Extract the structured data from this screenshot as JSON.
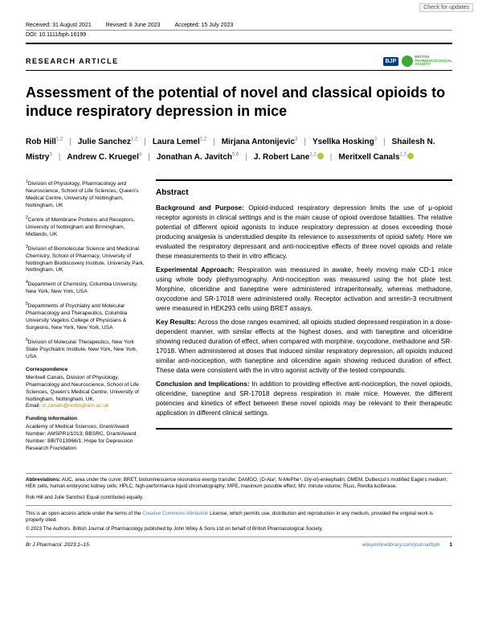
{
  "updates_badge": "Check for updates",
  "header": {
    "received": "Received: 31 August 2021",
    "revised": "Revised: 8 June 2023",
    "accepted": "Accepted: 15 July 2023"
  },
  "doi": "DOI: 10.1111/bph.16199",
  "article_type": "RESEARCH ARTICLE",
  "logos": {
    "bjp": "BJP",
    "bps_line1": "BRITISH",
    "bps_line2": "PHARMACOLOGICAL",
    "bps_line3": "SOCIETY"
  },
  "title": "Assessment of the potential of novel and classical opioids to induce respiratory depression in mice",
  "authors": [
    {
      "name": "Rob Hill",
      "sup": "1,2",
      "orcid": false
    },
    {
      "name": "Julie Sanchez",
      "sup": "1,2",
      "orcid": false
    },
    {
      "name": "Laura Lemel",
      "sup": "1,2",
      "orcid": false
    },
    {
      "name": "Mirjana Antonijevic",
      "sup": "3",
      "orcid": false
    },
    {
      "name": "Ysellka Hosking",
      "sup": "3",
      "orcid": false
    },
    {
      "name": "Shailesh N. Mistry",
      "sup": "3",
      "orcid": false
    },
    {
      "name": "Andrew C. Kruegel",
      "sup": "4",
      "orcid": false
    },
    {
      "name": "Jonathan A. Javitch",
      "sup": "5,6",
      "orcid": false
    },
    {
      "name": "J. Robert Lane",
      "sup": "1,2",
      "orcid": true
    },
    {
      "name": "Meritxell Canals",
      "sup": "1,2",
      "orcid": true
    }
  ],
  "affiliations": [
    {
      "n": "1",
      "text": "Division of Physiology, Pharmacology and Neuroscience, School of Life Sciences, Queen's Medical Centre, University of Nottingham, Nottingham, UK"
    },
    {
      "n": "2",
      "text": "Centre of Membrane Proteins and Receptors, University of Nottingham and Birmingham, Midlands, UK"
    },
    {
      "n": "3",
      "text": "Division of Biomolecular Science and Medicinal Chemistry, School of Pharmacy, University of Nottingham Biodiscovery Institute, University Park, Nottingham, UK"
    },
    {
      "n": "4",
      "text": "Department of Chemistry, Columbia University, New York, New York, USA"
    },
    {
      "n": "5",
      "text": "Departments of Psychiatry and Molecular Pharmacology and Therapeutics, Columbia University Vagelos College of Physicians & Surgeons, New York, New York, USA"
    },
    {
      "n": "6",
      "text": "Division of Molecular Therapeutics, New York State Psychiatric Institute, New York, New York, USA"
    }
  ],
  "correspondence": {
    "heading": "Correspondence",
    "text": "Meritxell Canals, Division of Physiology, Pharmacology and Neuroscience, School of Life Sciences, Queen's Medical Centre, University of Nottingham, Nottingham, UK.",
    "email_label": "Email: ",
    "email": "m.canals@nottingham.ac.uk"
  },
  "funding": {
    "heading": "Funding information",
    "text": "Academy of Medical Sciences, Grant/Award Number: AMSPR1/1013; BBSRC, Grant/Award Number: BB/T013966/1; Hope for Depression Research Foundation"
  },
  "abstract": {
    "heading": "Abstract",
    "background_label": "Background and Purpose:",
    "background": " Opioid-induced respiratory depression limits the use of μ-opioid receptor agonists in clinical settings and is the main cause of opioid overdose fatalities. The relative potential of different opioid agonists to induce respiratory depression at doses exceeding those producing analgesia is understudied despite its relevance to assessments of opioid safety. Here we evaluated the respiratory depressant and anti-nociceptive effects of three novel opioids and relate these measurements to their in vitro efficacy.",
    "approach_label": "Experimental Approach:",
    "approach": " Respiration was measured in awake, freely moving male CD-1 mice using whole body plethysmography. Anti-nociception was measured using the hot plate test. Morphine, oliceridine and tianeptine were administered intraperitoneally, whereas methadone, oxycodone and SR-17018 were administered orally. Receptor activation and arrestin-3 recruitment were measured in HEK293 cells using BRET assays.",
    "results_label": "Key Results:",
    "results": " Across the dose ranges examined, all opioids studied depressed respiration in a dose-dependent manner, with similar effects at the highest doses, and with tianeptine and oliceridine showing reduced duration of effect, when compared with morphine, oxycodone, methadone and SR-17018. When administered at doses that induced similar respiratory depression, all opioids induced similar anti-nociception, with tianeptine and oliceridine again showing reduced duration of effect. These data were consistent with the in vitro agonist activity of the tested compounds.",
    "conclusion_label": "Conclusion and Implications:",
    "conclusion": " In addition to providing effective anti-nociception, the novel opioids, oliceridine, tianeptine and SR-17018 depress respiration in male mice. However, the different potencies and kinetics of effect between these novel opioids may be relevant to their therapeutic application in different clinical settings."
  },
  "abbreviations": {
    "label": "Abbreviations:",
    "text": " AUC, area under the curve; BRET, bioluminescence resonance energy transfer; DAMGO, (D-Ala², N-MePhe⁴, Gly-ol)-enkephalin; DMEM, Dulbecco's modified Eagle's medium; HEK cells, human embryonic kidney cells; HPLC, high-performance liquid chromatography; MPE, maximum possible effect; MV, minute volume; RLuc, Renilla luciferase."
  },
  "contribution": "Rob Hill and Julie Sanchez Equal contributed equally.",
  "license": {
    "pre": "This is an open access article under the terms of the ",
    "link": "Creative Commons Attribution",
    "post": " License, which permits use, distribution and reproduction in any medium, provided the original work is properly cited."
  },
  "copyright": "© 2023 The Authors. British Journal of Pharmacology published by John Wiley & Sons Ltd on behalf of British Pharmacological Society.",
  "footer": {
    "citation": "Br J Pharmacol. 2023;1–15.",
    "url": "wileyonlinelibrary.com/journal/bph",
    "page": "1"
  }
}
